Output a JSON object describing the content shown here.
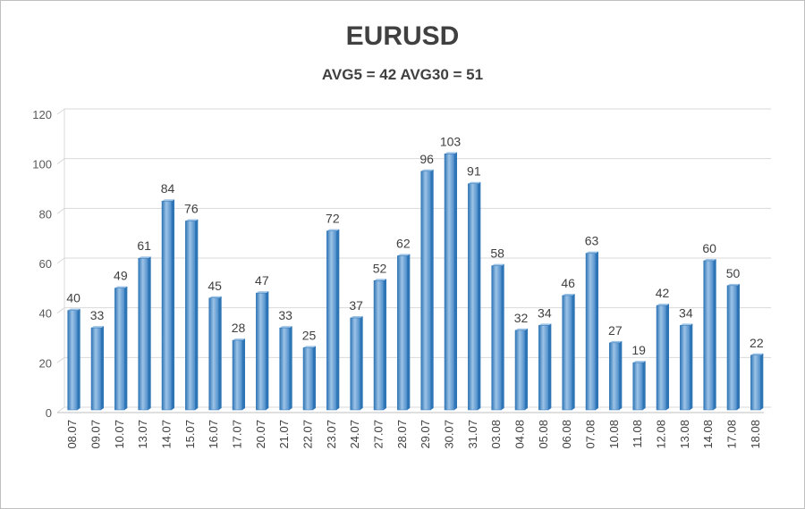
{
  "chart_data": {
    "type": "bar",
    "title": "EURUSD",
    "subtitle": "AVG5 = 42 AVG30 = 51",
    "categories": [
      "08.07",
      "09.07",
      "10.07",
      "13.07",
      "14.07",
      "15.07",
      "16.07",
      "17.07",
      "20.07",
      "21.07",
      "22.07",
      "23.07",
      "24.07",
      "27.07",
      "28.07",
      "29.07",
      "30.07",
      "31.07",
      "03.08",
      "04.08",
      "05.08",
      "06.08",
      "07.08",
      "10.08",
      "11.08",
      "12.08",
      "13.08",
      "14.08",
      "17.08",
      "18.08"
    ],
    "values": [
      40,
      33,
      49,
      61,
      84,
      76,
      45,
      28,
      47,
      33,
      25,
      72,
      37,
      52,
      62,
      96,
      103,
      91,
      58,
      32,
      34,
      46,
      63,
      27,
      19,
      42,
      34,
      60,
      50,
      22
    ],
    "ylim": [
      0,
      120
    ],
    "yticks": [
      0,
      20,
      40,
      60,
      80,
      100,
      120
    ],
    "grid": true,
    "bar_color": "#5b9bd5",
    "bar_dark": "#2e75b6",
    "bar_light": "#9dc3e6"
  }
}
